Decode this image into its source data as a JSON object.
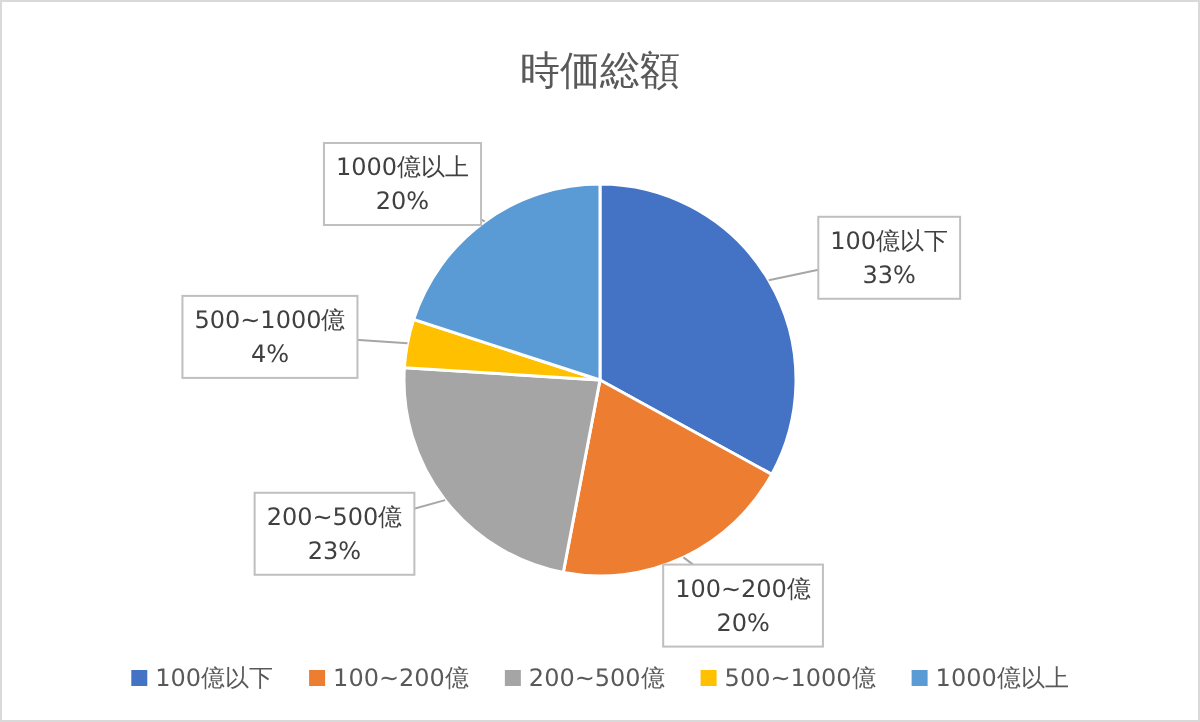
{
  "chart_data": {
    "type": "pie",
    "title": "時価総額",
    "categories": [
      "100億以下",
      "100~200億",
      "200~500億",
      "500~1000億",
      "1000億以上"
    ],
    "values": [
      33,
      20,
      23,
      4,
      20
    ],
    "colors": [
      "#4472c4",
      "#ed7d31",
      "#a5a5a5",
      "#ffc000",
      "#5b9bd5"
    ],
    "value_labels": [
      "33%",
      "20%",
      "23%",
      "4%",
      "20%"
    ],
    "legend": "bottom"
  }
}
